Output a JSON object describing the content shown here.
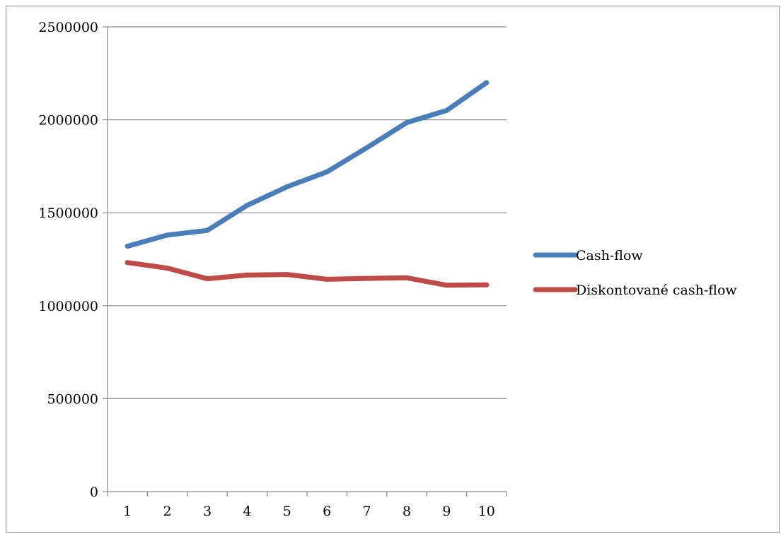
{
  "chart_data": {
    "type": "line",
    "title": "",
    "xlabel": "",
    "ylabel": "",
    "categories": [
      "1",
      "2",
      "3",
      "4",
      "5",
      "6",
      "7",
      "8",
      "9",
      "10"
    ],
    "ylim": [
      0,
      2500000
    ],
    "yticks": [
      "0",
      "500000",
      "1000000",
      "1500000",
      "2000000",
      "2500000"
    ],
    "grid": true,
    "legend_position": "right",
    "series": [
      {
        "name": "Cash-flow",
        "color": "#4a7ebb",
        "values": [
          1320000,
          1380000,
          1405000,
          1540000,
          1640000,
          1720000,
          1850000,
          1985000,
          2050000,
          2200000
        ]
      },
      {
        "name": "Diskontované cash-flow",
        "color": "#be4b48",
        "values": [
          1232000,
          1202000,
          1145000,
          1165000,
          1168000,
          1142000,
          1147000,
          1150000,
          1110000,
          1112000
        ]
      }
    ]
  }
}
